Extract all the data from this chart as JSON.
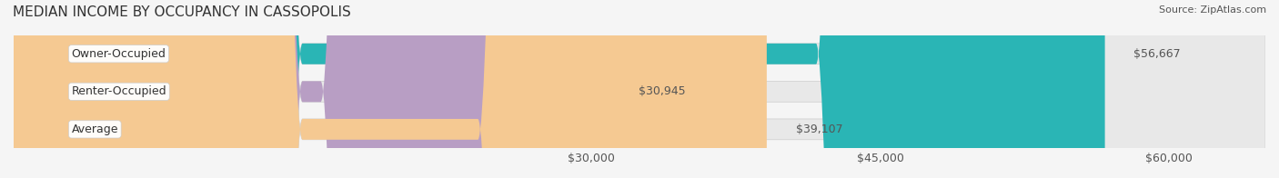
{
  "title": "MEDIAN INCOME BY OCCUPANCY IN CASSOPOLIS",
  "source": "Source: ZipAtlas.com",
  "categories": [
    "Owner-Occupied",
    "Renter-Occupied",
    "Average"
  ],
  "values": [
    56667,
    30945,
    39107
  ],
  "labels": [
    "$56,667",
    "$30,945",
    "$39,107"
  ],
  "bar_colors": [
    "#2ab5b5",
    "#b89ec4",
    "#f5c992"
  ],
  "bar_edge_colors": [
    "#2ab5b5",
    "#b89ec4",
    "#f5c992"
  ],
  "xmin": 0,
  "xmax": 65000,
  "xticks": [
    30000,
    45000,
    60000
  ],
  "xtick_labels": [
    "$30,000",
    "$45,000",
    "$60,000"
  ],
  "background_color": "#f5f5f5",
  "bar_background_color": "#e8e8e8",
  "title_fontsize": 11,
  "source_fontsize": 8,
  "label_fontsize": 9,
  "tick_fontsize": 9
}
